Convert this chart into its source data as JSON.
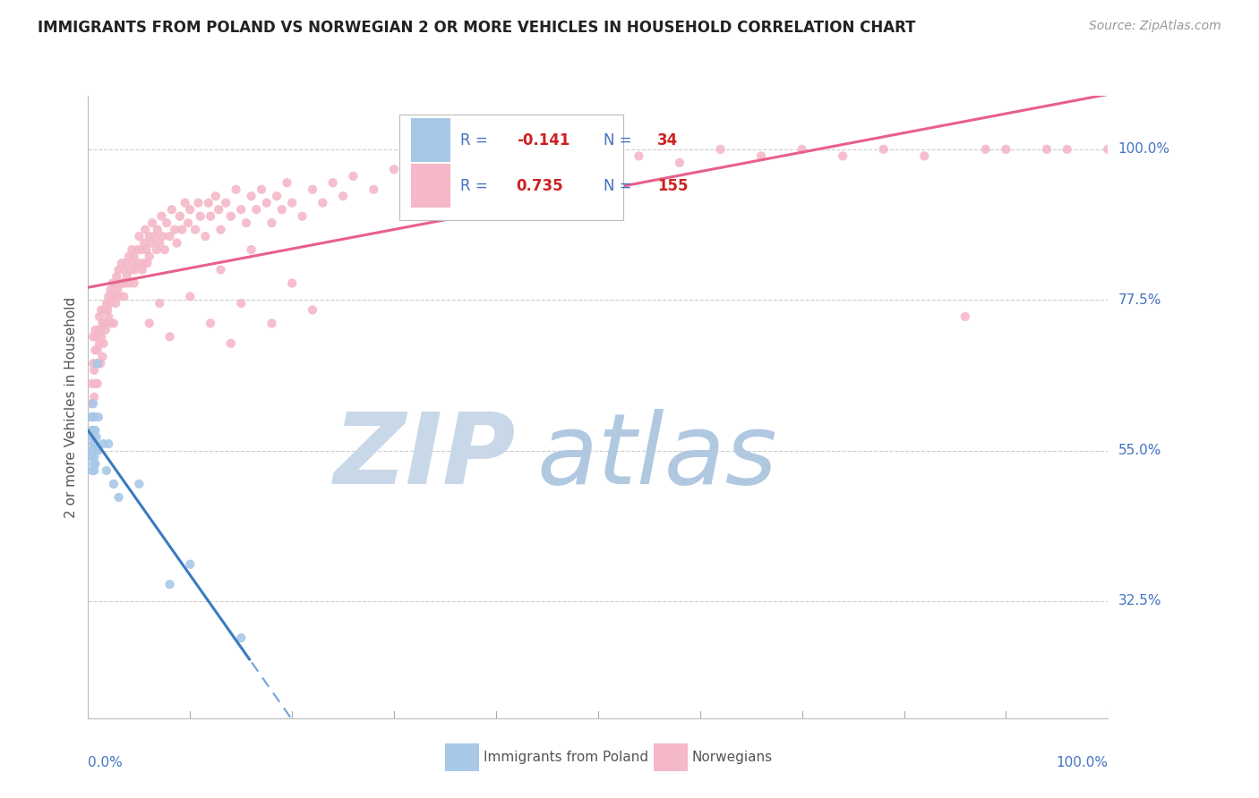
{
  "title": "IMMIGRANTS FROM POLAND VS NORWEGIAN 2 OR MORE VEHICLES IN HOUSEHOLD CORRELATION CHART",
  "source": "Source: ZipAtlas.com",
  "ylabel": "2 or more Vehicles in Household",
  "ytick_labels": [
    "100.0%",
    "77.5%",
    "55.0%",
    "32.5%"
  ],
  "ytick_values": [
    1.0,
    0.775,
    0.55,
    0.325
  ],
  "xlim": [
    0.0,
    1.0
  ],
  "ylim": [
    0.15,
    1.08
  ],
  "poland_color": "#a8c8e8",
  "norway_color": "#f4b8c8",
  "poland_line_color": "#3a7abf",
  "norway_line_color": "#e8608a",
  "background_color": "#ffffff",
  "grid_color": "#cccccc",
  "title_color": "#222222",
  "axis_label_color": "#555555",
  "right_label_color": "#4472c4",
  "legend_text_color": "#4472c4",
  "legend_value_color": "#cc2222",
  "watermark_zip_color": "#c8d8e8",
  "watermark_atlas_color": "#b0c8e0",
  "poland_scatter": [
    [
      0.003,
      0.6
    ],
    [
      0.004,
      0.58
    ],
    [
      0.004,
      0.57
    ],
    [
      0.004,
      0.55
    ],
    [
      0.004,
      0.54
    ],
    [
      0.004,
      0.52
    ],
    [
      0.005,
      0.62
    ],
    [
      0.005,
      0.6
    ],
    [
      0.005,
      0.58
    ],
    [
      0.005,
      0.56
    ],
    [
      0.005,
      0.55
    ],
    [
      0.005,
      0.53
    ],
    [
      0.006,
      0.6
    ],
    [
      0.006,
      0.58
    ],
    [
      0.006,
      0.56
    ],
    [
      0.006,
      0.54
    ],
    [
      0.006,
      0.52
    ],
    [
      0.007,
      0.58
    ],
    [
      0.007,
      0.56
    ],
    [
      0.007,
      0.53
    ],
    [
      0.008,
      0.57
    ],
    [
      0.008,
      0.55
    ],
    [
      0.009,
      0.68
    ],
    [
      0.01,
      0.6
    ],
    [
      0.01,
      0.55
    ],
    [
      0.015,
      0.56
    ],
    [
      0.018,
      0.52
    ],
    [
      0.02,
      0.56
    ],
    [
      0.025,
      0.5
    ],
    [
      0.03,
      0.48
    ],
    [
      0.05,
      0.5
    ],
    [
      0.08,
      0.35
    ],
    [
      0.1,
      0.38
    ],
    [
      0.15,
      0.27
    ]
  ],
  "norway_scatter": [
    [
      0.003,
      0.62
    ],
    [
      0.004,
      0.6
    ],
    [
      0.004,
      0.65
    ],
    [
      0.005,
      0.68
    ],
    [
      0.005,
      0.72
    ],
    [
      0.006,
      0.63
    ],
    [
      0.006,
      0.67
    ],
    [
      0.007,
      0.65
    ],
    [
      0.007,
      0.7
    ],
    [
      0.007,
      0.73
    ],
    [
      0.008,
      0.68
    ],
    [
      0.008,
      0.72
    ],
    [
      0.009,
      0.7
    ],
    [
      0.009,
      0.65
    ],
    [
      0.01,
      0.73
    ],
    [
      0.01,
      0.68
    ],
    [
      0.011,
      0.71
    ],
    [
      0.011,
      0.75
    ],
    [
      0.012,
      0.73
    ],
    [
      0.012,
      0.68
    ],
    [
      0.013,
      0.72
    ],
    [
      0.013,
      0.76
    ],
    [
      0.014,
      0.74
    ],
    [
      0.014,
      0.69
    ],
    [
      0.015,
      0.74
    ],
    [
      0.015,
      0.71
    ],
    [
      0.016,
      0.76
    ],
    [
      0.017,
      0.73
    ],
    [
      0.018,
      0.77
    ],
    [
      0.018,
      0.74
    ],
    [
      0.019,
      0.76
    ],
    [
      0.02,
      0.78
    ],
    [
      0.02,
      0.75
    ],
    [
      0.021,
      0.77
    ],
    [
      0.022,
      0.79
    ],
    [
      0.022,
      0.74
    ],
    [
      0.023,
      0.78
    ],
    [
      0.024,
      0.8
    ],
    [
      0.025,
      0.78
    ],
    [
      0.025,
      0.74
    ],
    [
      0.026,
      0.8
    ],
    [
      0.027,
      0.77
    ],
    [
      0.028,
      0.81
    ],
    [
      0.028,
      0.78
    ],
    [
      0.029,
      0.79
    ],
    [
      0.03,
      0.82
    ],
    [
      0.03,
      0.78
    ],
    [
      0.032,
      0.8
    ],
    [
      0.033,
      0.83
    ],
    [
      0.034,
      0.8
    ],
    [
      0.035,
      0.82
    ],
    [
      0.035,
      0.78
    ],
    [
      0.036,
      0.8
    ],
    [
      0.037,
      0.83
    ],
    [
      0.038,
      0.81
    ],
    [
      0.04,
      0.84
    ],
    [
      0.04,
      0.8
    ],
    [
      0.042,
      0.82
    ],
    [
      0.043,
      0.85
    ],
    [
      0.044,
      0.83
    ],
    [
      0.045,
      0.8
    ],
    [
      0.045,
      0.84
    ],
    [
      0.046,
      0.82
    ],
    [
      0.048,
      0.85
    ],
    [
      0.05,
      0.83
    ],
    [
      0.05,
      0.87
    ],
    [
      0.052,
      0.85
    ],
    [
      0.053,
      0.82
    ],
    [
      0.055,
      0.86
    ],
    [
      0.055,
      0.83
    ],
    [
      0.056,
      0.88
    ],
    [
      0.057,
      0.85
    ],
    [
      0.058,
      0.83
    ],
    [
      0.06,
      0.87
    ],
    [
      0.06,
      0.84
    ],
    [
      0.062,
      0.86
    ],
    [
      0.063,
      0.89
    ],
    [
      0.065,
      0.87
    ],
    [
      0.067,
      0.85
    ],
    [
      0.068,
      0.88
    ],
    [
      0.07,
      0.86
    ],
    [
      0.072,
      0.9
    ],
    [
      0.073,
      0.87
    ],
    [
      0.075,
      0.85
    ],
    [
      0.077,
      0.89
    ],
    [
      0.08,
      0.87
    ],
    [
      0.082,
      0.91
    ],
    [
      0.085,
      0.88
    ],
    [
      0.087,
      0.86
    ],
    [
      0.09,
      0.9
    ],
    [
      0.092,
      0.88
    ],
    [
      0.095,
      0.92
    ],
    [
      0.098,
      0.89
    ],
    [
      0.1,
      0.91
    ],
    [
      0.105,
      0.88
    ],
    [
      0.108,
      0.92
    ],
    [
      0.11,
      0.9
    ],
    [
      0.115,
      0.87
    ],
    [
      0.118,
      0.92
    ],
    [
      0.12,
      0.9
    ],
    [
      0.125,
      0.93
    ],
    [
      0.128,
      0.91
    ],
    [
      0.13,
      0.88
    ],
    [
      0.135,
      0.92
    ],
    [
      0.14,
      0.9
    ],
    [
      0.145,
      0.94
    ],
    [
      0.15,
      0.91
    ],
    [
      0.155,
      0.89
    ],
    [
      0.16,
      0.93
    ],
    [
      0.165,
      0.91
    ],
    [
      0.17,
      0.94
    ],
    [
      0.175,
      0.92
    ],
    [
      0.18,
      0.89
    ],
    [
      0.185,
      0.93
    ],
    [
      0.19,
      0.91
    ],
    [
      0.195,
      0.95
    ],
    [
      0.2,
      0.92
    ],
    [
      0.21,
      0.9
    ],
    [
      0.22,
      0.94
    ],
    [
      0.23,
      0.92
    ],
    [
      0.24,
      0.95
    ],
    [
      0.25,
      0.93
    ],
    [
      0.26,
      0.96
    ],
    [
      0.28,
      0.94
    ],
    [
      0.3,
      0.97
    ],
    [
      0.32,
      0.95
    ],
    [
      0.35,
      0.97
    ],
    [
      0.38,
      0.96
    ],
    [
      0.4,
      0.98
    ],
    [
      0.43,
      0.96
    ],
    [
      0.46,
      0.99
    ],
    [
      0.5,
      0.97
    ],
    [
      0.54,
      0.99
    ],
    [
      0.58,
      0.98
    ],
    [
      0.62,
      1.0
    ],
    [
      0.66,
      0.99
    ],
    [
      0.7,
      1.0
    ],
    [
      0.74,
      0.99
    ],
    [
      0.78,
      1.0
    ],
    [
      0.82,
      0.99
    ],
    [
      0.86,
      0.75
    ],
    [
      0.88,
      1.0
    ],
    [
      0.9,
      1.0
    ],
    [
      0.94,
      1.0
    ],
    [
      0.96,
      1.0
    ],
    [
      1.0,
      1.0
    ],
    [
      0.1,
      0.78
    ],
    [
      0.12,
      0.74
    ],
    [
      0.13,
      0.82
    ],
    [
      0.14,
      0.71
    ],
    [
      0.15,
      0.77
    ],
    [
      0.16,
      0.85
    ],
    [
      0.18,
      0.74
    ],
    [
      0.2,
      0.8
    ],
    [
      0.22,
      0.76
    ],
    [
      0.07,
      0.77
    ],
    [
      0.08,
      0.72
    ],
    [
      0.06,
      0.74
    ]
  ]
}
